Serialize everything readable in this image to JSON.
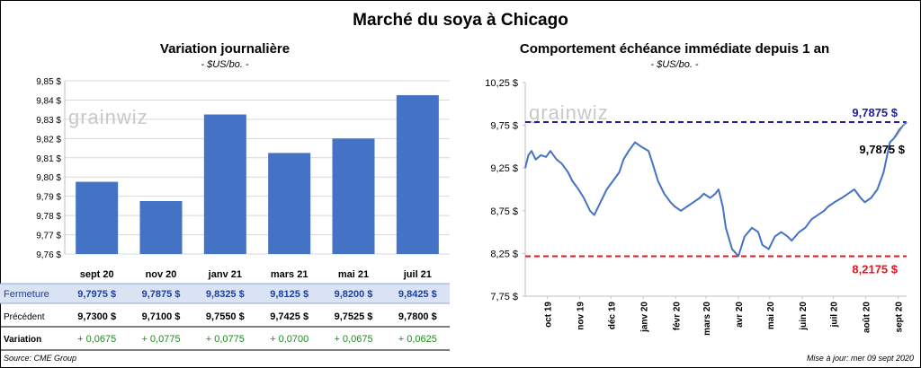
{
  "title": "Marché du soya à Chicago",
  "watermark": "grainwiz",
  "left_panel": {
    "title": "Variation journalière",
    "unit": "- $US/bo. -"
  },
  "right_panel": {
    "title": "Comportement  échéance immédiate depuis 1 an",
    "unit": "- $US/bo. -",
    "current_label": "9,7875 $",
    "line_label": "9,7875  $",
    "low_label": "8,2175  $"
  },
  "table": {
    "rows": [
      {
        "label": "Fermeture",
        "values": [
          "9,7975  $",
          "9,7875  $",
          "9,8325  $",
          "9,8125  $",
          "9,8200  $",
          "9,8425  $"
        ]
      },
      {
        "label": "Précédent",
        "values": [
          "9,7300  $",
          "9,7100  $",
          "9,7550  $",
          "9,7425  $",
          "9,7525  $",
          "9,7800  $"
        ]
      },
      {
        "label": "Variation",
        "values": [
          "+ 0,0675",
          "+ 0,0775",
          "+ 0,0775",
          "+ 0,0700",
          "+ 0,0675",
          "+ 0,0625"
        ]
      }
    ]
  },
  "footer": {
    "source": "Source: CME Group",
    "update": "Mise à jour: mer 09 sept 2020"
  },
  "colors": {
    "bar": "#4472c4",
    "line": "#4472c4",
    "high": "#1f1f9f",
    "low": "#e8141e",
    "table_row": "#dae3f3",
    "table_text": "#1f3f9a",
    "positive": "#1f8a1f"
  },
  "chart_data": [
    {
      "type": "bar",
      "title": "Variation journalière",
      "subtitle": "- $US/bo. -",
      "categories": [
        "sept 20",
        "nov 20",
        "janv 21",
        "mars 21",
        "mai 21",
        "juil 21"
      ],
      "values": [
        9.7975,
        9.7875,
        9.8325,
        9.8125,
        9.82,
        9.8425
      ],
      "ylim": [
        9.76,
        9.85
      ],
      "yticks": [
        "9,76 $",
        "9,77 $",
        "9,78 $",
        "9,79 $",
        "9,80 $",
        "9,81 $",
        "9,82 $",
        "9,83 $",
        "9,84 $",
        "9,85 $"
      ],
      "grid": true
    },
    {
      "type": "line",
      "title": "Comportement  échéance immédiate depuis 1 an",
      "subtitle": "- $US/bo. -",
      "ylim": [
        7.75,
        10.25
      ],
      "yticks": [
        "7,75 $",
        "8,25 $",
        "8,75 $",
        "9,25 $",
        "9,75 $",
        "10,25 $"
      ],
      "xticks": [
        "oct 19",
        "nov 19",
        "déc 19",
        "janv 20",
        "févr 20",
        "mars 20",
        "avr 20",
        "mai 20",
        "juin 20",
        "juil 20",
        "août 20",
        "sept 20"
      ],
      "reference_lines": [
        {
          "value": 9.7875,
          "label": "9,7875  $"
        },
        {
          "value": 8.2175,
          "label": "8,2175  $"
        }
      ],
      "series": [
        {
          "x": [
            "2019-09-10",
            "2019-09-13",
            "2019-09-16",
            "2019-09-20",
            "2019-09-25",
            "2019-09-30",
            "2019-10-04",
            "2019-10-10",
            "2019-10-15",
            "2019-10-21",
            "2019-10-25",
            "2019-10-31",
            "2019-11-05",
            "2019-11-11",
            "2019-11-15",
            "2019-11-21",
            "2019-11-27",
            "2019-12-03",
            "2019-12-09",
            "2019-12-13",
            "2019-12-18",
            "2019-12-24",
            "2019-12-30",
            "2020-01-06",
            "2020-01-10",
            "2020-01-15",
            "2020-01-21",
            "2020-01-27",
            "2020-01-31",
            "2020-02-06",
            "2020-02-12",
            "2020-02-18",
            "2020-02-24",
            "2020-02-28",
            "2020-03-05",
            "2020-03-10",
            "2020-03-13",
            "2020-03-17",
            "2020-03-20",
            "2020-03-26",
            "2020-04-01",
            "2020-04-07",
            "2020-04-14",
            "2020-04-20",
            "2020-04-24",
            "2020-04-30",
            "2020-05-06",
            "2020-05-12",
            "2020-05-18",
            "2020-05-22",
            "2020-05-29",
            "2020-06-04",
            "2020-06-10",
            "2020-06-16",
            "2020-06-22",
            "2020-06-26",
            "2020-07-02",
            "2020-07-09",
            "2020-07-15",
            "2020-07-21",
            "2020-07-27",
            "2020-07-31",
            "2020-08-06",
            "2020-08-12",
            "2020-08-18",
            "2020-08-24",
            "2020-08-28",
            "2020-09-02",
            "2020-09-09"
          ],
          "y": [
            9.25,
            9.4,
            9.45,
            9.35,
            9.4,
            9.38,
            9.45,
            9.35,
            9.3,
            9.2,
            9.1,
            9.0,
            8.9,
            8.75,
            8.7,
            8.85,
            9.0,
            9.1,
            9.2,
            9.35,
            9.45,
            9.55,
            9.5,
            9.45,
            9.3,
            9.1,
            8.95,
            8.85,
            8.8,
            8.75,
            8.8,
            8.85,
            8.9,
            8.95,
            8.9,
            8.95,
            9.0,
            8.8,
            8.55,
            8.3,
            8.22,
            8.45,
            8.55,
            8.5,
            8.35,
            8.3,
            8.45,
            8.5,
            8.45,
            8.4,
            8.5,
            8.55,
            8.65,
            8.7,
            8.75,
            8.8,
            8.85,
            8.9,
            8.95,
            9.0,
            8.9,
            8.85,
            8.9,
            9.0,
            9.2,
            9.55,
            9.6,
            9.7,
            9.7875
          ]
        }
      ]
    }
  ]
}
